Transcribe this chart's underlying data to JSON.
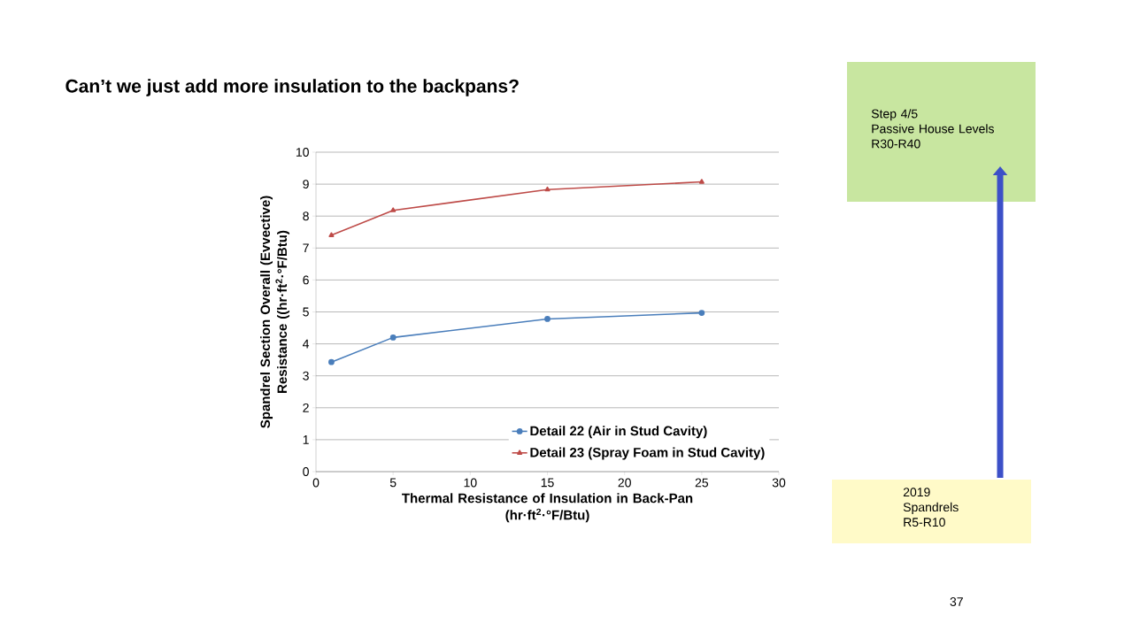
{
  "chart_data": {
    "type": "line",
    "title": "Can’t we just add more insulation to the backpans?",
    "xlabel": "Thermal Resistance of Insulation in Back-Pan\n(hr·ft$^{2}$·°F/Btu)",
    "ylabel": "Spandrel Section Overall (Evvective)\nResistance ((hr·ft$^{2}$·°F/Btu)",
    "x": [
      1,
      5,
      15,
      25
    ],
    "series": [
      {
        "name": "Detail 22 (Air in Stud Cavity)",
        "color": "#4a7ebb",
        "marker": "circle",
        "values": [
          3.43,
          4.2,
          4.78,
          4.97
        ]
      },
      {
        "name": "Detail 23 (Spray Foam in Stud Cavity)",
        "color": "#be4b48",
        "marker": "triangle",
        "values": [
          7.4,
          8.18,
          8.83,
          9.07
        ]
      }
    ],
    "xlim": [
      0,
      30
    ],
    "xticks": [
      0,
      5,
      10,
      15,
      20,
      25,
      30
    ],
    "ylim": [
      0,
      10
    ],
    "yticks": [
      0,
      1,
      2,
      3,
      4,
      5,
      6,
      7,
      8,
      9,
      10
    ],
    "grid": "y",
    "legend": "bottom right",
    "annotations": [
      "Step 4/5\nPassive House Levels\nR30-R40",
      "2019\nSpandrels\nR5-R10",
      "37"
    ]
  }
}
